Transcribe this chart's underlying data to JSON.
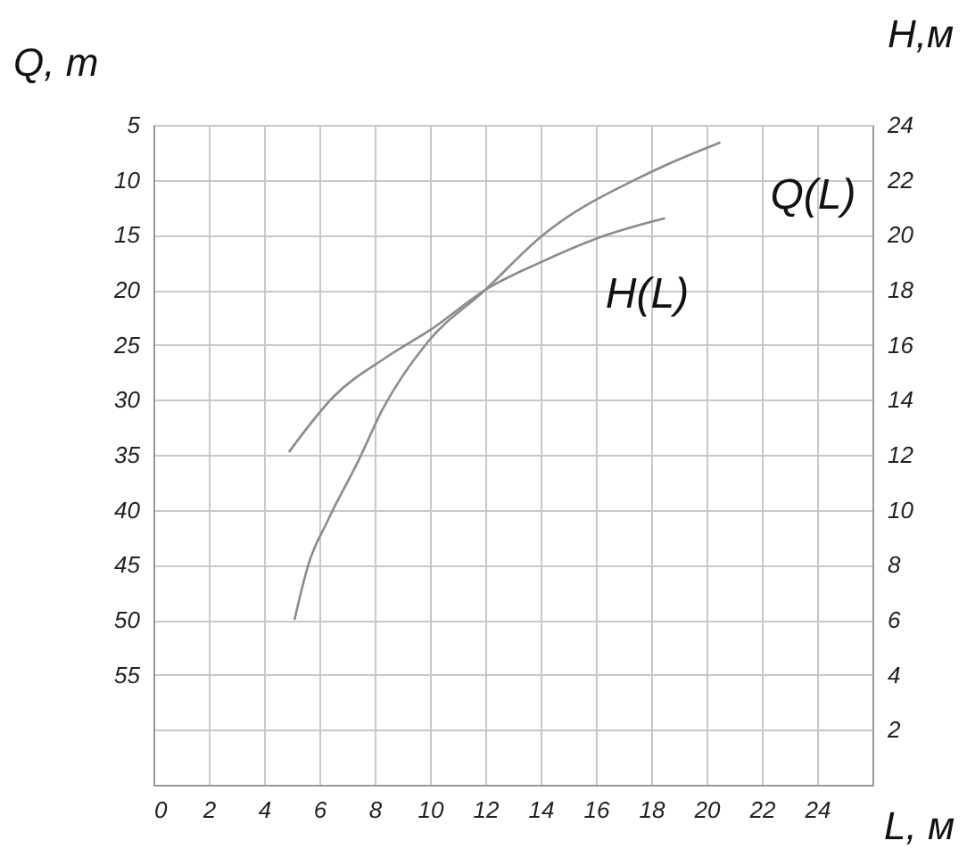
{
  "chart_data": {
    "type": "line",
    "xlabel": "L, м",
    "ylabel": "Q, т",
    "y2label": "H,м",
    "xlim": [
      0,
      26
    ],
    "xticks": [
      0,
      2,
      4,
      6,
      8,
      10,
      12,
      14,
      16,
      18,
      20,
      22,
      24
    ],
    "ylim": [
      65,
      5
    ],
    "yticks": [
      5,
      10,
      15,
      20,
      25,
      30,
      35,
      40,
      45,
      50,
      55,
      {
        "value": 60,
        "label": null
      }
    ],
    "y2lim": [
      0,
      24
    ],
    "y2ticks": [
      2,
      4,
      6,
      8,
      10,
      12,
      14,
      16,
      18,
      20,
      22,
      24
    ],
    "grid": true,
    "legend": false,
    "marker": "none",
    "line_style": "solid",
    "series": [
      {
        "name": "Q(L)",
        "color": "#8c8c8c",
        "x": [
          5.1,
          5.6,
          6.3,
          7.4,
          8.3,
          9.9,
          12,
          14,
          17.9,
          20.5
        ],
        "values": [
          50,
          45,
          41,
          35.6,
          30.8,
          24.8,
          20,
          15.2,
          9.4,
          6.6
        ]
      },
      {
        "name": "H(L)",
        "color": "#8c8c8c",
        "axis": "y2",
        "x": [
          4.9,
          6.5,
          8.5,
          10.1,
          12,
          14,
          16.4,
          18.5
        ],
        "values": [
          12.1,
          14.1,
          15.6,
          16.6,
          18,
          19,
          20,
          20.6
        ]
      }
    ]
  }
}
